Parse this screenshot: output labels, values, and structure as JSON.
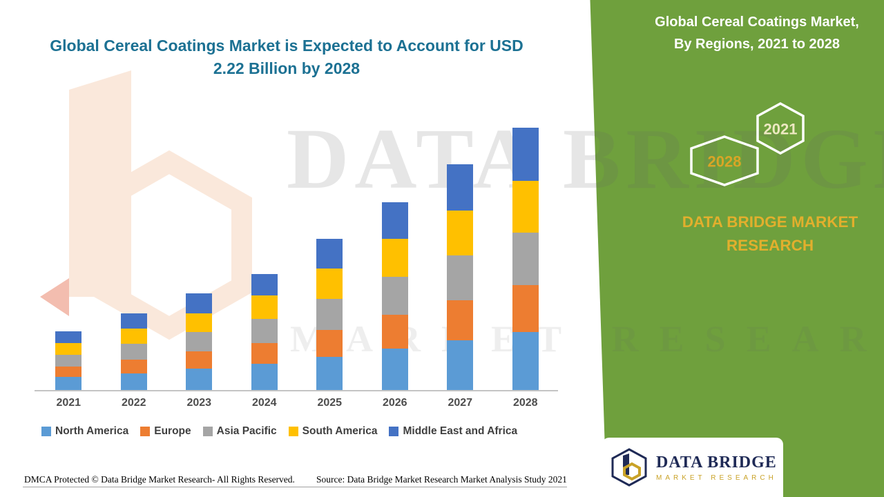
{
  "page": {
    "background": "#ffffff",
    "accent_green": "#6FA03D"
  },
  "title": {
    "line1": "Global Cereal Coatings Market is Expected to Account for USD",
    "line2": "2.22 Billion by 2028"
  },
  "side_panel": {
    "heading_line1": "Global Cereal Coatings Market,",
    "heading_line2": "By Regions, 2021 to 2028",
    "hexagons": [
      {
        "label": "2028",
        "label_color": "#D9A526"
      },
      {
        "label": "2021",
        "label_color": "#EDE8C2"
      }
    ],
    "brand": "DATA BRIDGE MARKET RESEARCH"
  },
  "watermark": {
    "line1": "DATA BRIDGE",
    "line2": "MARKET RESEARCH"
  },
  "logo": {
    "name": "DATA BRIDGE",
    "tagline": "MARKET RESEARCH"
  },
  "footer": {
    "dmca": "DMCA Protected © Data Bridge Market Research- All Rights Reserved.",
    "source": "Source: Data Bridge Market Research Market Analysis Study 2021"
  },
  "chart_data": {
    "type": "bar",
    "stacked": true,
    "title": "Global Cereal Coatings Market, By Regions, 2021 to 2028",
    "unit": "USD Billion",
    "categories": [
      "2021",
      "2022",
      "2023",
      "2024",
      "2025",
      "2026",
      "2027",
      "2028"
    ],
    "series": [
      {
        "name": "North America",
        "color": "#5B9BD5",
        "values": [
          0.11,
          0.14,
          0.18,
          0.22,
          0.28,
          0.35,
          0.42,
          0.49
        ]
      },
      {
        "name": "Europe",
        "color": "#ED7D31",
        "values": [
          0.09,
          0.12,
          0.15,
          0.18,
          0.23,
          0.29,
          0.34,
          0.4
        ]
      },
      {
        "name": "Asia Pacific",
        "color": "#A5A5A5",
        "values": [
          0.1,
          0.13,
          0.16,
          0.2,
          0.26,
          0.32,
          0.38,
          0.44
        ]
      },
      {
        "name": "South America",
        "color": "#FFC000",
        "values": [
          0.1,
          0.13,
          0.16,
          0.2,
          0.26,
          0.32,
          0.38,
          0.44
        ]
      },
      {
        "name": "Middle East and Africa",
        "color": "#4472C4",
        "values": [
          0.1,
          0.13,
          0.17,
          0.18,
          0.25,
          0.31,
          0.39,
          0.45
        ]
      }
    ],
    "totals": [
      0.5,
      0.65,
      0.82,
      0.98,
      1.28,
      1.59,
      1.91,
      2.22
    ],
    "ylim": [
      0,
      2.4
    ],
    "grid": false,
    "legend_position": "bottom",
    "x_axis_visible": true,
    "y_axis_visible": false
  }
}
